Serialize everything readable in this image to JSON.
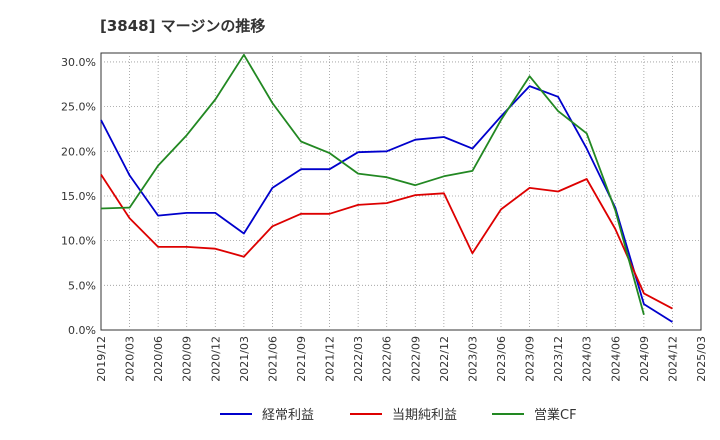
{
  "chart_data": {
    "type": "line",
    "title": "[3848]  マージンの推移",
    "x": [
      "2019/12",
      "2020/03",
      "2020/06",
      "2020/09",
      "2020/12",
      "2021/03",
      "2021/06",
      "2021/09",
      "2021/12",
      "2022/03",
      "2022/06",
      "2022/09",
      "2022/12",
      "2023/03",
      "2023/06",
      "2023/09",
      "2023/12",
      "2024/03",
      "2024/06",
      "2024/09",
      "2024/12",
      "2025/03"
    ],
    "ylim": [
      0,
      31
    ],
    "yticks": [
      0,
      5,
      10,
      15,
      20,
      25,
      30
    ],
    "ytick_labels": [
      "0.0%",
      "5.0%",
      "10.0%",
      "15.0%",
      "20.0%",
      "25.0%",
      "30.0%"
    ],
    "grid": true,
    "legend_position": "bottom",
    "series": [
      {
        "name": "経常利益",
        "color": "#0000cc",
        "values": [
          23.5,
          17.3,
          12.8,
          13.1,
          13.1,
          10.8,
          15.9,
          18.0,
          18.0,
          19.9,
          20.0,
          21.3,
          21.6,
          20.3,
          23.9,
          27.3,
          26.1,
          20.3,
          13.7,
          2.9,
          0.9,
          null
        ]
      },
      {
        "name": "当期純利益",
        "color": "#dd0000",
        "values": [
          17.4,
          12.5,
          9.3,
          9.3,
          9.1,
          8.2,
          11.6,
          13.0,
          13.0,
          14.0,
          14.2,
          15.1,
          15.3,
          8.6,
          13.5,
          15.9,
          15.5,
          16.9,
          11.3,
          4.1,
          2.4,
          null
        ]
      },
      {
        "name": "営業CF",
        "color": "#228822",
        "values": [
          13.6,
          13.7,
          18.4,
          21.8,
          25.8,
          30.8,
          25.4,
          21.1,
          19.8,
          17.5,
          17.1,
          16.2,
          17.2,
          17.8,
          23.5,
          28.4,
          24.5,
          22.0,
          13.4,
          1.7,
          null,
          null
        ]
      }
    ]
  }
}
